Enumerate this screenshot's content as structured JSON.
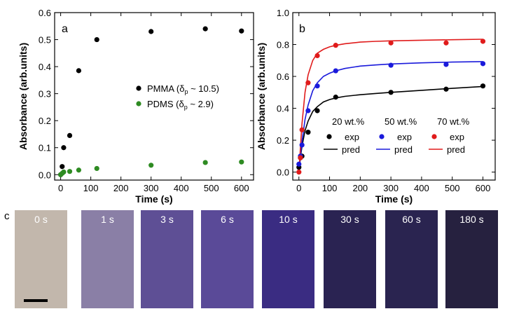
{
  "chart_data": [
    {
      "panel": "a",
      "type": "scatter",
      "xlabel": "Time (s)",
      "ylabel": "Absorbance (arb.units)",
      "xlim": [
        -20,
        640
      ],
      "ylim": [
        -0.02,
        0.6
      ],
      "xticks": [
        0,
        100,
        200,
        300,
        400,
        500,
        600
      ],
      "yticks": [
        0.0,
        0.1,
        0.2,
        0.3,
        0.4,
        0.5,
        0.6
      ],
      "ytick_labels": [
        "0.0",
        "0.1",
        "0.2",
        "0.3",
        "0.4",
        "0.5",
        "0.6"
      ],
      "legend_position": "center-right",
      "series": [
        {
          "name": "PMMA (δp ~ 10.5)",
          "legend_main": "PMMA (δ",
          "legend_sub": "p",
          "legend_tail": " ~ 10.5)",
          "color": "#000000",
          "x": [
            0,
            5,
            10,
            30,
            60,
            120,
            300,
            480,
            600
          ],
          "y": [
            0.0,
            0.03,
            0.1,
            0.145,
            0.385,
            0.5,
            0.53,
            0.54,
            0.532
          ]
        },
        {
          "name": "PDMS (δp ~ 2.9)",
          "legend_main": "PDMS (δ",
          "legend_sub": "p",
          "legend_tail": " ~ 2.9)",
          "color": "#2e8b22",
          "x": [
            0,
            5,
            10,
            30,
            60,
            120,
            300,
            480,
            600
          ],
          "y": [
            0.0,
            0.005,
            0.01,
            0.012,
            0.017,
            0.023,
            0.035,
            0.045,
            0.047
          ]
        }
      ]
    },
    {
      "panel": "b",
      "type": "scatter",
      "xlabel": "Time (s)",
      "ylabel": "Absorbance (arb.units)",
      "xlim": [
        -20,
        640
      ],
      "ylim": [
        -0.05,
        1.0
      ],
      "xticks": [
        0,
        100,
        200,
        300,
        400,
        500,
        600
      ],
      "yticks": [
        0.0,
        0.2,
        0.4,
        0.6,
        0.8,
        1.0
      ],
      "ytick_labels": [
        "0.0",
        "0.2",
        "0.4",
        "0.6",
        "0.8",
        "1.0"
      ],
      "legend_position": "lower-right",
      "exp_label": "exp",
      "pred_label": "pred",
      "series": [
        {
          "name": "20 wt.%",
          "color": "#000000",
          "x": [
            0,
            5,
            10,
            30,
            60,
            120,
            300,
            480,
            600
          ],
          "y": [
            0.03,
            0.09,
            0.1,
            0.25,
            0.385,
            0.47,
            0.5,
            0.52,
            0.54
          ],
          "pred_x": [
            0,
            5,
            10,
            20,
            30,
            45,
            60,
            80,
            100,
            120,
            150,
            200,
            250,
            300,
            400,
            500,
            600
          ],
          "pred_y": [
            0.0,
            0.09,
            0.16,
            0.26,
            0.32,
            0.38,
            0.41,
            0.44,
            0.455,
            0.465,
            0.475,
            0.485,
            0.493,
            0.5,
            0.513,
            0.525,
            0.537
          ]
        },
        {
          "name": "50 wt.%",
          "color": "#1a1adb",
          "x": [
            0,
            5,
            10,
            30,
            60,
            120,
            300,
            480,
            600
          ],
          "y": [
            0.05,
            0.1,
            0.17,
            0.385,
            0.54,
            0.635,
            0.67,
            0.675,
            0.68
          ],
          "pred_x": [
            0,
            5,
            10,
            20,
            30,
            45,
            60,
            80,
            100,
            120,
            150,
            200,
            250,
            300,
            400,
            500,
            600
          ],
          "pred_y": [
            0.0,
            0.1,
            0.19,
            0.33,
            0.42,
            0.51,
            0.56,
            0.6,
            0.62,
            0.635,
            0.65,
            0.665,
            0.672,
            0.678,
            0.685,
            0.69,
            0.693
          ]
        },
        {
          "name": "70 wt.%",
          "color": "#e01b1b",
          "x": [
            0,
            5,
            10,
            30,
            60,
            120,
            300,
            480,
            600
          ],
          "y": [
            0.0,
            0.09,
            0.265,
            0.56,
            0.73,
            0.795,
            0.81,
            0.81,
            0.82
          ],
          "pred_x": [
            0,
            5,
            10,
            20,
            30,
            45,
            60,
            80,
            100,
            120,
            150,
            200,
            250,
            300,
            400,
            500,
            600
          ],
          "pred_y": [
            0.0,
            0.15,
            0.3,
            0.5,
            0.61,
            0.7,
            0.745,
            0.77,
            0.785,
            0.795,
            0.805,
            0.815,
            0.82,
            0.823,
            0.827,
            0.83,
            0.833
          ]
        }
      ]
    }
  ],
  "panel_c": {
    "letter": "c",
    "tiles": [
      {
        "label": "0 s",
        "color": "#c2b7ac"
      },
      {
        "label": "1 s",
        "color": "#8a7fa6"
      },
      {
        "label": "3 s",
        "color": "#5e4f95"
      },
      {
        "label": "6 s",
        "color": "#5a4a98"
      },
      {
        "label": "10 s",
        "color": "#3a2c82"
      },
      {
        "label": "30 s",
        "color": "#2a2352"
      },
      {
        "label": "60 s",
        "color": "#2a2450"
      },
      {
        "label": "180 s",
        "color": "#26213f"
      }
    ]
  }
}
